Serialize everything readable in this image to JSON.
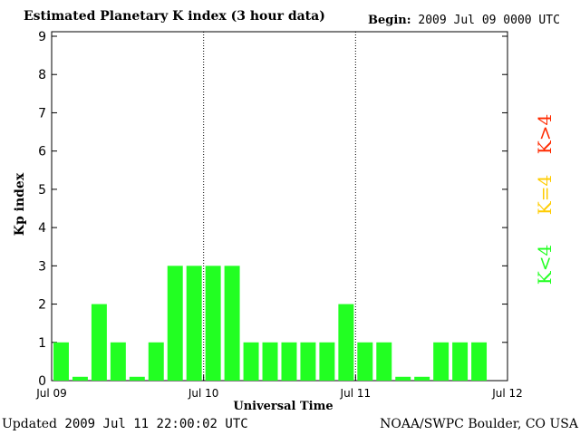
{
  "header": {
    "title": "Estimated Planetary K index (3 hour data)",
    "begin_label": "Begin:",
    "begin_value": "2009 Jul 09 0000 UTC"
  },
  "footer": {
    "updated_label": "Updated",
    "updated_value": "2009 Jul 11 22:00:02 UTC",
    "source": "NOAA/SWPC Boulder, CO USA"
  },
  "legend": {
    "high": {
      "label": "K>4",
      "color": "#ff2a00"
    },
    "equal": {
      "label": "K=4",
      "color": "#ffcc00"
    },
    "low": {
      "label": "K<4",
      "color": "#22ff22"
    }
  },
  "chart_data": {
    "type": "bar",
    "title": "Estimated Planetary K index (3 hour data)",
    "xlabel": "Universal Time",
    "ylabel": "Kp index",
    "ylim": [
      0,
      9
    ],
    "yticks": [
      0,
      1,
      2,
      3,
      4,
      5,
      6,
      7,
      8,
      9
    ],
    "xticks": [
      "Jul 09",
      "Jul 10",
      "Jul 11",
      "Jul 12"
    ],
    "interval_hours": 3,
    "series": [
      {
        "values": [
          1,
          0.1,
          2,
          1,
          0.1,
          1,
          3,
          3,
          3,
          3,
          1,
          1,
          1,
          1,
          1,
          2,
          1,
          1,
          0.1,
          0.1,
          1,
          1,
          1
        ]
      }
    ],
    "bar_color": "#22ff22",
    "day_dividers": "dotted vertical lines at Jul 10 and Jul 11"
  }
}
